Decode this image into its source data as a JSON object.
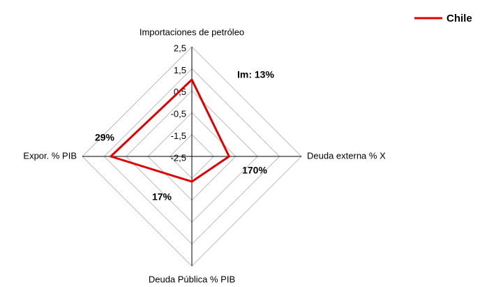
{
  "chart_data": {
    "type": "radar",
    "categories": [
      "Importaciones de petróleo",
      "Deuda externa % X",
      "Deuda Pública % PIB",
      "Expor. % PIB"
    ],
    "series": [
      {
        "name": "Chile",
        "color": "#e00000",
        "values": [
          1.0,
          -0.8,
          -1.35,
          1.2
        ]
      }
    ],
    "ylim": [
      -2.5,
      2.5
    ],
    "yticks": [
      {
        "value": 2.5,
        "label": "2,5"
      },
      {
        "value": 1.5,
        "label": "1,5"
      },
      {
        "value": 0.5,
        "label": "0,5"
      },
      {
        "value": -0.5,
        "label": "-0,5"
      },
      {
        "value": -1.5,
        "label": "-1,5"
      },
      {
        "value": -2.5,
        "label": "-2,5"
      }
    ],
    "annotations": [
      "Im: 13%",
      "170%",
      "17%",
      "29%"
    ],
    "grid": true,
    "legend": "top-right"
  }
}
